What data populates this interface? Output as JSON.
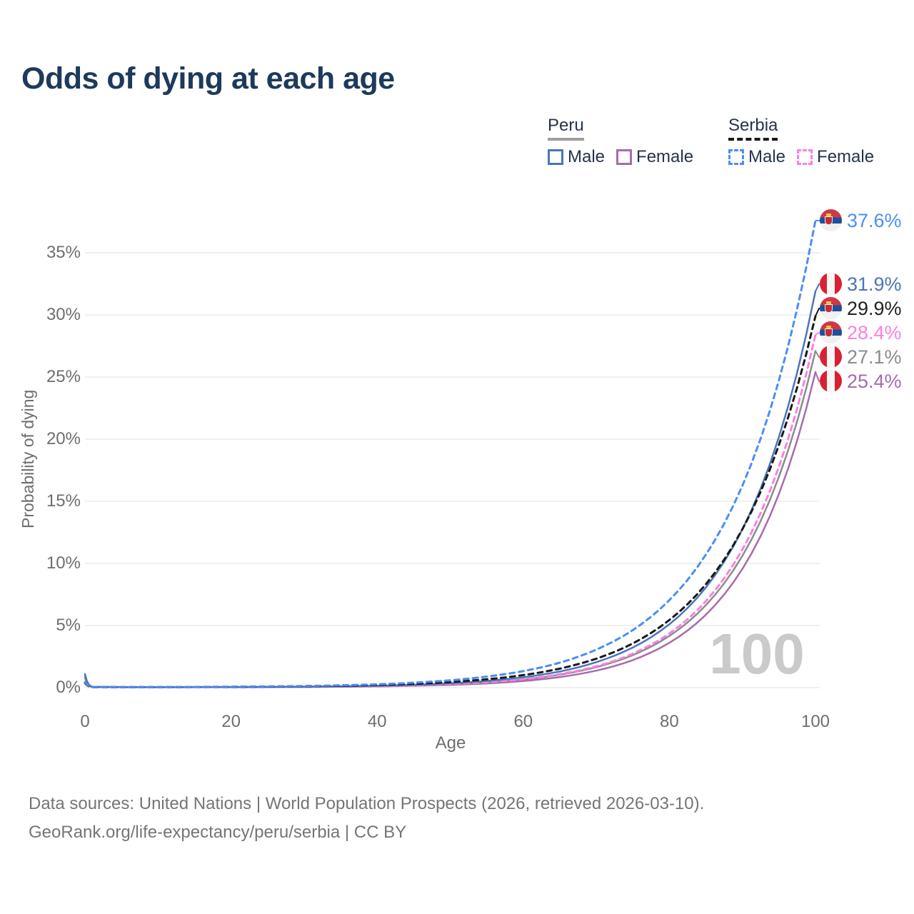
{
  "title": "Odds of dying at each age",
  "watermark": "100",
  "legend": {
    "groups": [
      {
        "country": "Peru",
        "underline": {
          "color": "#9e9e9e",
          "style": "solid"
        },
        "items": [
          {
            "label": "Male",
            "series": "peru_male"
          },
          {
            "label": "Female",
            "series": "peru_female"
          }
        ]
      },
      {
        "country": "Serbia",
        "underline": {
          "color": "#1a1a1a",
          "style": "dashed"
        },
        "items": [
          {
            "label": "Male",
            "series": "serbia_male"
          },
          {
            "label": "Female",
            "series": "serbia_female"
          }
        ]
      }
    ]
  },
  "footer": {
    "line1": "Data sources: United Nations | World Population Prospects (2026, retrieved 2026-03-10).",
    "line2": "GeoRank.org/life-expectancy/peru/serbia | CC BY"
  },
  "chart_data": {
    "type": "line",
    "title": "Odds of dying at each age",
    "xlabel": "Age",
    "ylabel": "Probability of dying",
    "xlim": [
      0,
      100
    ],
    "ylim_pct": [
      0,
      38
    ],
    "grid": "horizontal",
    "x_ticks": [
      0,
      20,
      40,
      60,
      80,
      100
    ],
    "y_tick_labels": [
      "0%",
      "5%",
      "10%",
      "15%",
      "20%",
      "25%",
      "30%",
      "35%"
    ],
    "y_tick_values": [
      0,
      5,
      10,
      15,
      20,
      25,
      30,
      35
    ],
    "ages": [
      0,
      1,
      5,
      10,
      15,
      20,
      25,
      30,
      35,
      40,
      45,
      50,
      55,
      60,
      65,
      70,
      75,
      80,
      85,
      90,
      95,
      100
    ],
    "series": [
      {
        "key": "serbia_male",
        "name": "Serbia Male",
        "country": "Serbia",
        "sex": "male",
        "color": "#4b8ef7",
        "dashed": true,
        "flag": "serbia-flag-icon",
        "end_value_pct": 37.6,
        "end_label": "37.6%",
        "label_color": "#4b8ef7",
        "values_pct": [
          0.45,
          0.05,
          0.04,
          0.05,
          0.06,
          0.08,
          0.1,
          0.13,
          0.19,
          0.27,
          0.4,
          0.59,
          0.89,
          1.33,
          2.01,
          3.06,
          4.63,
          7.04,
          10.7,
          16.26,
          24.73,
          37.6
        ]
      },
      {
        "key": "peru_male",
        "name": "Peru Male",
        "country": "Peru",
        "sex": "male",
        "color": "#4a76b8",
        "dashed": false,
        "flag": "peru-flag-icon",
        "end_value_pct": 31.9,
        "end_label": "31.9%",
        "label_color": "#4a76b8",
        "values_pct": [
          1.1,
          0.07,
          0.05,
          0.04,
          0.05,
          0.05,
          0.06,
          0.08,
          0.11,
          0.16,
          0.23,
          0.35,
          0.54,
          0.84,
          1.3,
          2.05,
          3.23,
          5.1,
          8.06,
          12.74,
          20.17,
          31.9
        ]
      },
      {
        "key": "serbia_total",
        "name": "Serbia",
        "country": "Serbia",
        "sex": "both",
        "color": "#1a1a1a",
        "dashed": true,
        "flag": "serbia-flag-icon",
        "end_value_pct": 29.9,
        "end_label": "29.9%",
        "label_color": "#222222",
        "values_pct": [
          0.4,
          0.04,
          0.04,
          0.04,
          0.05,
          0.06,
          0.08,
          0.11,
          0.15,
          0.21,
          0.3,
          0.45,
          0.67,
          1.01,
          1.53,
          2.33,
          3.56,
          5.44,
          8.32,
          12.75,
          19.53,
          29.9
        ]
      },
      {
        "key": "serbia_female",
        "name": "Serbia Female",
        "country": "Serbia",
        "sex": "female",
        "color": "#fb80e3",
        "dashed": true,
        "flag": "serbia-flag-icon",
        "end_value_pct": 28.4,
        "end_label": "28.4%",
        "label_color": "#fb80e3",
        "values_pct": [
          0.35,
          0.04,
          0.03,
          0.04,
          0.04,
          0.05,
          0.05,
          0.07,
          0.09,
          0.13,
          0.19,
          0.29,
          0.44,
          0.69,
          1.09,
          1.72,
          2.74,
          4.36,
          6.96,
          11.12,
          17.78,
          28.4
        ]
      },
      {
        "key": "peru_total",
        "name": "Peru",
        "country": "Peru",
        "sex": "both",
        "color": "#8c8c8c",
        "dashed": false,
        "flag": "peru-flag-icon",
        "end_value_pct": 27.1,
        "end_label": "27.1%",
        "label_color": "#8c8c8c",
        "values_pct": [
          0.95,
          0.06,
          0.04,
          0.04,
          0.04,
          0.05,
          0.05,
          0.07,
          0.09,
          0.13,
          0.18,
          0.28,
          0.43,
          0.66,
          1.04,
          1.65,
          2.62,
          4.16,
          6.64,
          10.61,
          16.97,
          27.1
        ]
      },
      {
        "key": "peru_female",
        "name": "Peru Female",
        "country": "Peru",
        "sex": "female",
        "color": "#a76bad",
        "dashed": false,
        "flag": "peru-flag-icon",
        "end_value_pct": 25.4,
        "end_label": "25.4%",
        "label_color": "#a76bad",
        "values_pct": [
          0.8,
          0.05,
          0.04,
          0.03,
          0.04,
          0.04,
          0.05,
          0.06,
          0.07,
          0.1,
          0.15,
          0.22,
          0.34,
          0.53,
          0.85,
          1.37,
          2.22,
          3.61,
          5.87,
          9.56,
          15.59,
          25.4
        ]
      }
    ]
  }
}
